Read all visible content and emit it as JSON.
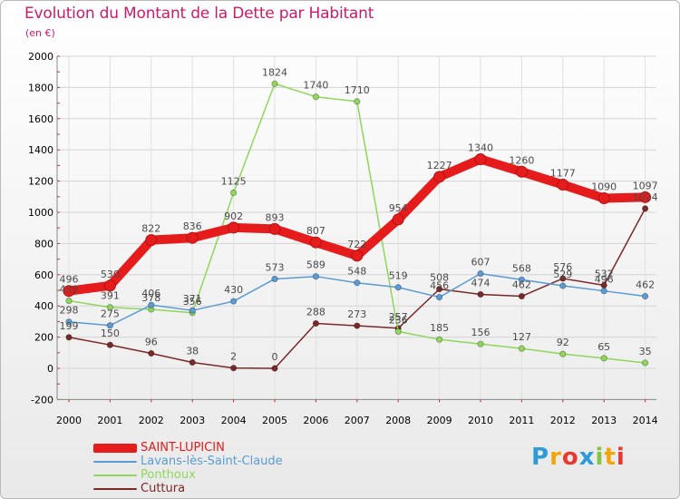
{
  "title": "Evolution du Montant de la Dette par Habitant",
  "unit_label": "(en €)",
  "logo": {
    "text": "Proxiti",
    "letter_colors": [
      "#2e9bd6",
      "#f2a60a",
      "#e63a33",
      "#2e9bd6",
      "#84c441",
      "#f2a60a",
      "#e63a33"
    ]
  },
  "colors": {
    "title": "#c81b6e",
    "axis_labels": "#000000",
    "value_labels": "#4a4a4a"
  },
  "chart_data": {
    "type": "line",
    "title": "Evolution du Montant de la Dette par Habitant",
    "ylabel": "(en €)",
    "xlabel": "",
    "x": [
      "2000",
      "2001",
      "2002",
      "2003",
      "2004",
      "2005",
      "2006",
      "2007",
      "2008",
      "2009",
      "2010",
      "2011",
      "2012",
      "2013",
      "2014"
    ],
    "ylim": [
      -200,
      2000
    ],
    "yticks": [
      -200,
      0,
      200,
      400,
      600,
      800,
      1000,
      1200,
      1400,
      1600,
      1800,
      2000
    ],
    "grid": true,
    "legend_position": "bottom-left",
    "series": [
      {
        "name": "SAINT-LUPICIN",
        "color": "#e61b1b",
        "values": [
          496,
          530,
          822,
          836,
          902,
          893,
          807,
          722,
          954,
          1227,
          1340,
          1260,
          1177,
          1090,
          1097
        ]
      },
      {
        "name": "Lavans-lès-Saint-Claude",
        "color": "#5a9bd4",
        "values": [
          298,
          275,
          406,
          371,
          430,
          573,
          589,
          548,
          519,
          456,
          607,
          568,
          529,
          496,
          462
        ]
      },
      {
        "name": "Ponthoux",
        "color": "#8fd65a",
        "values": [
          433,
          391,
          378,
          356,
          1125,
          1824,
          1740,
          1710,
          236,
          185,
          156,
          127,
          92,
          65,
          35
        ]
      },
      {
        "name": "Cuttura",
        "color": "#7a2828",
        "values": [
          199,
          150,
          96,
          38,
          2,
          0,
          288,
          273,
          257,
          508,
          474,
          462,
          576,
          532,
          1024
        ]
      }
    ]
  }
}
